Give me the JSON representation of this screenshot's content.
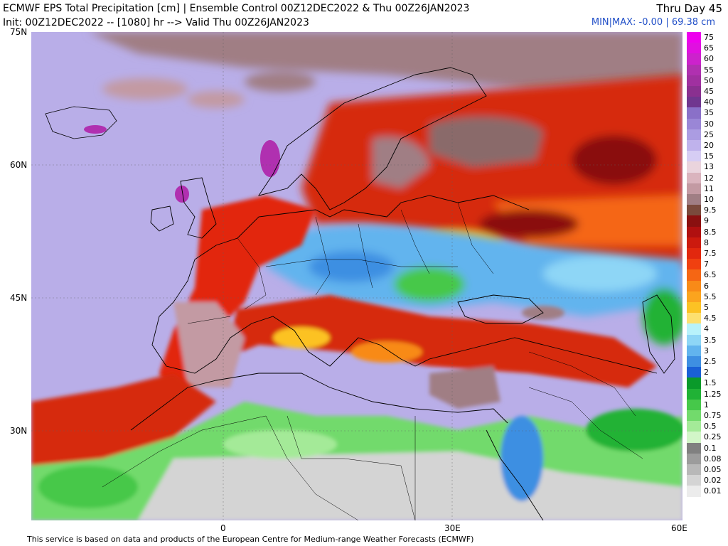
{
  "header": {
    "title": "ECMWF EPS Total Precipitation [cm] | Ensemble Control 00Z12DEC2022 & Thu 00Z26JAN2023",
    "subtitle": "Init: 00Z12DEC2022 -- [1080] hr --> Valid Thu 00Z26JAN2023",
    "day_label": "Thru Day 45",
    "minmax": "MIN|MAX: -0.00 | 69.38 cm"
  },
  "axes": {
    "lat_labels": [
      "75N",
      "60N",
      "45N",
      "30N"
    ],
    "lon_labels": [
      "0",
      "30E",
      "60E"
    ]
  },
  "legend": {
    "levels": [
      {
        "label": "75",
        "color": "#ee00ee"
      },
      {
        "label": "65",
        "color": "#e010e0"
      },
      {
        "label": "60",
        "color": "#cc22cc"
      },
      {
        "label": "55",
        "color": "#b030b0"
      },
      {
        "label": "50",
        "color": "#a030a0"
      },
      {
        "label": "45",
        "color": "#8a3090"
      },
      {
        "label": "40",
        "color": "#70368f"
      },
      {
        "label": "35",
        "color": "#8a70c8"
      },
      {
        "label": "30",
        "color": "#9a86d6"
      },
      {
        "label": "25",
        "color": "#ab9ce2"
      },
      {
        "label": "20",
        "color": "#bfb2ec"
      },
      {
        "label": "15",
        "color": "#d6cdf4"
      },
      {
        "label": "13",
        "color": "#ead4dd"
      },
      {
        "label": "12",
        "color": "#dab4be"
      },
      {
        "label": "11",
        "color": "#c39aa3"
      },
      {
        "label": "10",
        "color": "#a07e84"
      },
      {
        "label": "9.5",
        "color": "#7a4a3c"
      },
      {
        "label": "9",
        "color": "#8a1010"
      },
      {
        "label": "8.5",
        "color": "#b01010"
      },
      {
        "label": "8",
        "color": "#cc1a0e"
      },
      {
        "label": "7.5",
        "color": "#e2280e"
      },
      {
        "label": "7",
        "color": "#f04010"
      },
      {
        "label": "6.5",
        "color": "#f56614"
      },
      {
        "label": "6",
        "color": "#f88a18"
      },
      {
        "label": "5.5",
        "color": "#fba41e"
      },
      {
        "label": "5",
        "color": "#fcc224"
      },
      {
        "label": "4.5",
        "color": "#fde070"
      },
      {
        "label": "4",
        "color": "#b8f2fb"
      },
      {
        "label": "3.5",
        "color": "#8ed6f6"
      },
      {
        "label": "3",
        "color": "#62b4ee"
      },
      {
        "label": "2.5",
        "color": "#3e8fe2"
      },
      {
        "label": "2",
        "color": "#1a60d6"
      },
      {
        "label": "1.5",
        "color": "#0a9a2a"
      },
      {
        "label": "1.25",
        "color": "#20b236"
      },
      {
        "label": "1",
        "color": "#46c84a"
      },
      {
        "label": "0.75",
        "color": "#72da6c"
      },
      {
        "label": "0.5",
        "color": "#a4ea98"
      },
      {
        "label": "0.25",
        "color": "#d2f6c8"
      },
      {
        "label": "0.1",
        "color": "#808080"
      },
      {
        "label": "0.08",
        "color": "#9c9c9c"
      },
      {
        "label": "0.05",
        "color": "#b8b8b8"
      },
      {
        "label": "0.02",
        "color": "#d4d4d4"
      },
      {
        "label": "0.01",
        "color": "#ececec"
      }
    ]
  },
  "footer": "This service is based on data and products of the European Centre for Medium-range Weather Forecasts (ECMWF)"
}
